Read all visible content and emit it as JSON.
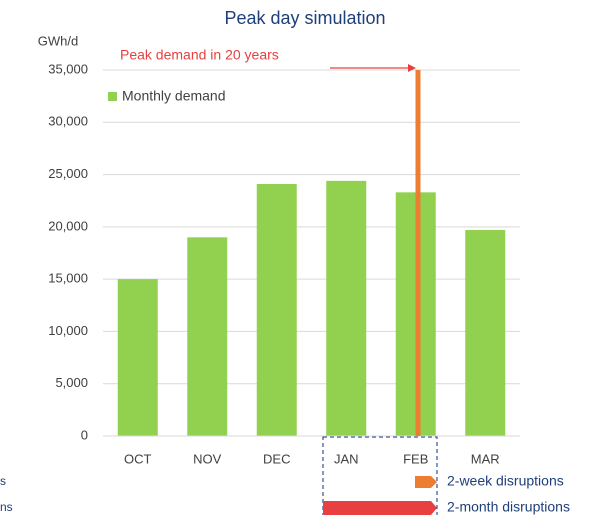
{
  "chart_data": {
    "type": "bar",
    "title": "Peak day simulation",
    "y_label": "GWh/d",
    "categories": [
      "OCT",
      "NOV",
      "DEC",
      "JAN",
      "FEB",
      "MAR"
    ],
    "series": [
      {
        "name": "Monthly demand",
        "color": "#92d050",
        "values": [
          15000,
          19000,
          24100,
          24400,
          23300,
          19700
        ]
      }
    ],
    "ylim": [
      0,
      35000
    ],
    "yticks": [
      0,
      {
        "value": 5000,
        "label": "5,000"
      },
      {
        "value": 10000,
        "label": "10,000"
      },
      {
        "value": 15000,
        "label": "15,000"
      },
      {
        "value": 20000,
        "label": "20,000"
      },
      {
        "value": 25000,
        "label": "25,000"
      },
      {
        "value": 30000,
        "label": "30,000"
      },
      {
        "value": 35000,
        "label": "35,000"
      }
    ],
    "grid": true,
    "legend": "upper left",
    "peak": {
      "label": "Peak demand in 20 years",
      "value": 35000,
      "color": "#ed7d31"
    },
    "annotations": [
      "2-week disruptions",
      "2-month disruptions",
      "s",
      "ns"
    ]
  }
}
